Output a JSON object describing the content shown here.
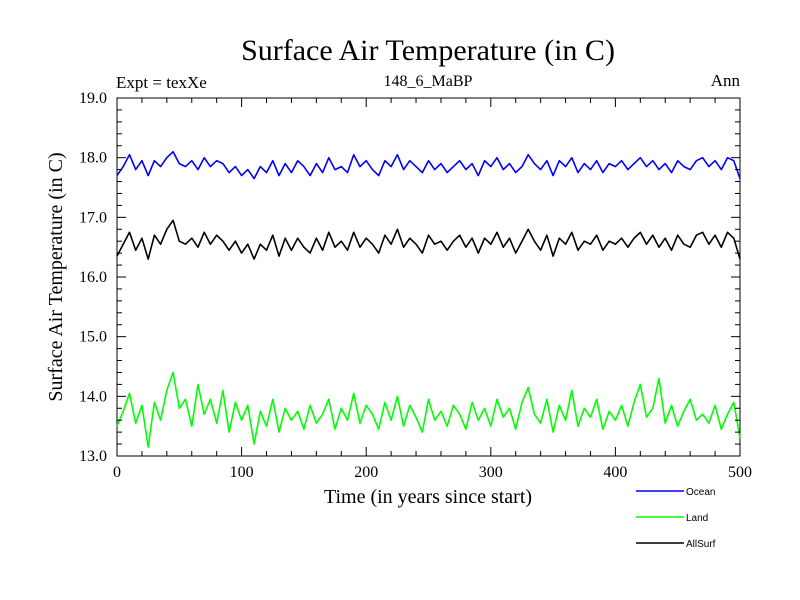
{
  "chart_data": {
    "type": "line",
    "title": "Surface Air Temperature (in C)",
    "subtitle": "148_6_MaBP",
    "left_label": "Expt = texXe",
    "right_label": "Ann",
    "xlabel": "Time (in years since start)",
    "ylabel": "Surface Air Temperature (in C)",
    "xlim": [
      0,
      500
    ],
    "ylim": [
      13.0,
      19.0
    ],
    "xticks": [
      0,
      100,
      200,
      300,
      400,
      500
    ],
    "xtick_labels": [
      "0",
      "100",
      "200",
      "300",
      "400",
      "500"
    ],
    "yticks": [
      13.0,
      14.0,
      15.0,
      16.0,
      17.0,
      18.0,
      19.0
    ],
    "ytick_labels": [
      "13.0",
      "14.0",
      "15.0",
      "16.0",
      "17.0",
      "18.0",
      "19.0"
    ],
    "legend_position": "bottom-right",
    "grid": false,
    "series": [
      {
        "name": "Ocean",
        "color": "#0000ff",
        "x": [
          0,
          5,
          10,
          15,
          20,
          25,
          30,
          35,
          40,
          45,
          50,
          55,
          60,
          65,
          70,
          75,
          80,
          85,
          90,
          95,
          100,
          105,
          110,
          115,
          120,
          125,
          130,
          135,
          140,
          145,
          150,
          155,
          160,
          165,
          170,
          175,
          180,
          185,
          190,
          195,
          200,
          205,
          210,
          215,
          220,
          225,
          230,
          235,
          240,
          245,
          250,
          255,
          260,
          265,
          270,
          275,
          280,
          285,
          290,
          295,
          300,
          305,
          310,
          315,
          320,
          325,
          330,
          335,
          340,
          345,
          350,
          355,
          360,
          365,
          370,
          375,
          380,
          385,
          390,
          395,
          400,
          405,
          410,
          415,
          420,
          425,
          430,
          435,
          440,
          445,
          450,
          455,
          460,
          465,
          470,
          475,
          480,
          485,
          490,
          495,
          500
        ],
        "values": [
          17.7,
          17.85,
          18.05,
          17.8,
          17.95,
          17.7,
          17.95,
          17.85,
          18.0,
          18.1,
          17.9,
          17.85,
          17.95,
          17.8,
          18.0,
          17.85,
          17.95,
          17.9,
          17.75,
          17.85,
          17.7,
          17.8,
          17.65,
          17.85,
          17.75,
          17.95,
          17.7,
          17.9,
          17.75,
          17.95,
          17.85,
          17.7,
          17.9,
          17.75,
          18.0,
          17.8,
          17.85,
          17.75,
          18.05,
          17.85,
          17.95,
          17.8,
          17.7,
          17.95,
          17.85,
          18.05,
          17.8,
          17.95,
          17.85,
          17.75,
          17.95,
          17.8,
          17.9,
          17.75,
          17.85,
          17.95,
          17.8,
          17.9,
          17.7,
          17.95,
          17.85,
          18.0,
          17.8,
          17.9,
          17.75,
          17.85,
          18.05,
          17.9,
          17.8,
          17.95,
          17.7,
          17.95,
          17.85,
          18.0,
          17.75,
          17.9,
          17.8,
          17.95,
          17.75,
          17.9,
          17.85,
          17.95,
          17.8,
          17.9,
          18.0,
          17.85,
          17.95,
          17.8,
          17.9,
          17.75,
          17.95,
          17.85,
          17.8,
          17.95,
          18.0,
          17.85,
          17.95,
          17.8,
          18.0,
          17.95,
          17.65
        ]
      },
      {
        "name": "Land",
        "color": "#00ff00",
        "x": [
          0,
          5,
          10,
          15,
          20,
          25,
          30,
          35,
          40,
          45,
          50,
          55,
          60,
          65,
          70,
          75,
          80,
          85,
          90,
          95,
          100,
          105,
          110,
          115,
          120,
          125,
          130,
          135,
          140,
          145,
          150,
          155,
          160,
          165,
          170,
          175,
          180,
          185,
          190,
          195,
          200,
          205,
          210,
          215,
          220,
          225,
          230,
          235,
          240,
          245,
          250,
          255,
          260,
          265,
          270,
          275,
          280,
          285,
          290,
          295,
          300,
          305,
          310,
          315,
          320,
          325,
          330,
          335,
          340,
          345,
          350,
          355,
          360,
          365,
          370,
          375,
          380,
          385,
          390,
          395,
          400,
          405,
          410,
          415,
          420,
          425,
          430,
          435,
          440,
          445,
          450,
          455,
          460,
          465,
          470,
          475,
          480,
          485,
          490,
          495,
          500
        ],
        "values": [
          13.5,
          13.75,
          14.05,
          13.55,
          13.85,
          13.15,
          13.9,
          13.6,
          14.1,
          14.4,
          13.8,
          13.95,
          13.5,
          14.2,
          13.7,
          13.95,
          13.55,
          14.1,
          13.4,
          13.9,
          13.6,
          13.85,
          13.2,
          13.75,
          13.5,
          13.95,
          13.4,
          13.8,
          13.6,
          13.75,
          13.45,
          13.85,
          13.55,
          13.7,
          13.95,
          13.45,
          13.8,
          13.6,
          14.05,
          13.55,
          13.85,
          13.7,
          13.45,
          13.9,
          13.6,
          14.0,
          13.5,
          13.85,
          13.65,
          13.4,
          13.95,
          13.6,
          13.75,
          13.5,
          13.85,
          13.7,
          13.45,
          13.9,
          13.6,
          13.8,
          13.5,
          13.95,
          13.65,
          13.8,
          13.45,
          13.9,
          14.15,
          13.7,
          13.55,
          13.95,
          13.4,
          13.85,
          13.6,
          14.1,
          13.5,
          13.8,
          13.65,
          13.95,
          13.45,
          13.75,
          13.6,
          13.85,
          13.5,
          13.9,
          14.2,
          13.65,
          13.8,
          14.3,
          13.55,
          13.85,
          13.5,
          13.75,
          13.95,
          13.6,
          13.7,
          13.55,
          13.85,
          13.45,
          13.7,
          13.9,
          13.3
        ]
      },
      {
        "name": "AllSurf",
        "color": "#000000",
        "x": [
          0,
          5,
          10,
          15,
          20,
          25,
          30,
          35,
          40,
          45,
          50,
          55,
          60,
          65,
          70,
          75,
          80,
          85,
          90,
          95,
          100,
          105,
          110,
          115,
          120,
          125,
          130,
          135,
          140,
          145,
          150,
          155,
          160,
          165,
          170,
          175,
          180,
          185,
          190,
          195,
          200,
          205,
          210,
          215,
          220,
          225,
          230,
          235,
          240,
          245,
          250,
          255,
          260,
          265,
          270,
          275,
          280,
          285,
          290,
          295,
          300,
          305,
          310,
          315,
          320,
          325,
          330,
          335,
          340,
          345,
          350,
          355,
          360,
          365,
          370,
          375,
          380,
          385,
          390,
          395,
          400,
          405,
          410,
          415,
          420,
          425,
          430,
          435,
          440,
          445,
          450,
          455,
          460,
          465,
          470,
          475,
          480,
          485,
          490,
          495,
          500
        ],
        "values": [
          16.35,
          16.55,
          16.75,
          16.45,
          16.65,
          16.3,
          16.7,
          16.55,
          16.8,
          16.95,
          16.6,
          16.55,
          16.65,
          16.5,
          16.75,
          16.55,
          16.7,
          16.6,
          16.45,
          16.6,
          16.4,
          16.55,
          16.3,
          16.55,
          16.45,
          16.7,
          16.35,
          16.65,
          16.45,
          16.65,
          16.5,
          16.4,
          16.65,
          16.45,
          16.75,
          16.5,
          16.6,
          16.45,
          16.75,
          16.5,
          16.65,
          16.55,
          16.4,
          16.7,
          16.55,
          16.8,
          16.5,
          16.65,
          16.55,
          16.4,
          16.7,
          16.55,
          16.6,
          16.45,
          16.6,
          16.7,
          16.5,
          16.65,
          16.4,
          16.65,
          16.55,
          16.75,
          16.5,
          16.65,
          16.4,
          16.6,
          16.8,
          16.6,
          16.45,
          16.7,
          16.35,
          16.65,
          16.55,
          16.75,
          16.45,
          16.6,
          16.55,
          16.7,
          16.45,
          16.6,
          16.55,
          16.65,
          16.5,
          16.65,
          16.75,
          16.55,
          16.7,
          16.5,
          16.65,
          16.45,
          16.7,
          16.55,
          16.5,
          16.7,
          16.75,
          16.55,
          16.7,
          16.5,
          16.75,
          16.65,
          16.3
        ]
      }
    ]
  }
}
